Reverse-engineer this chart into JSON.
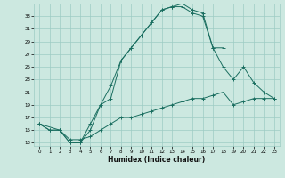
{
  "xlabel": "Humidex (Indice chaleur)",
  "background_color": "#cce8e0",
  "line_color": "#1a6e60",
  "grid_color": "#9eccc4",
  "ylim": [
    12.5,
    35
  ],
  "xlim": [
    -0.5,
    23.5
  ],
  "yticks": [
    13,
    15,
    17,
    19,
    21,
    23,
    25,
    27,
    29,
    31,
    33
  ],
  "xticks": [
    0,
    1,
    2,
    3,
    4,
    5,
    6,
    7,
    8,
    9,
    10,
    11,
    12,
    13,
    14,
    15,
    16,
    17,
    18,
    19,
    20,
    21,
    22,
    23
  ],
  "series": [
    {
      "x": [
        0,
        1,
        2,
        3,
        4,
        5,
        6,
        7,
        8,
        9,
        10,
        11,
        12,
        13,
        14,
        15,
        16,
        17,
        18
      ],
      "y": [
        16,
        15,
        15,
        13,
        13,
        15,
        19,
        20,
        26,
        28,
        30,
        32,
        34,
        34.5,
        34.5,
        33.5,
        33,
        28,
        28
      ]
    },
    {
      "x": [
        0,
        1,
        2,
        3,
        4,
        5,
        6,
        7,
        8,
        9,
        10,
        11,
        12,
        13,
        14,
        15,
        16,
        17,
        18,
        19,
        20,
        21,
        22,
        23
      ],
      "y": [
        16,
        15,
        15,
        13.5,
        13.5,
        14,
        15,
        16,
        17,
        17,
        17.5,
        18,
        18.5,
        19,
        19.5,
        20,
        20,
        20.5,
        21,
        19,
        19.5,
        20,
        20,
        20
      ]
    },
    {
      "x": [
        0,
        2,
        3,
        4,
        5,
        6,
        7,
        8,
        9,
        10,
        11,
        12,
        13,
        14,
        15,
        16,
        17,
        18,
        19,
        20,
        21,
        22,
        23
      ],
      "y": [
        16,
        15,
        13,
        13,
        16,
        19,
        22,
        26,
        28,
        30,
        32,
        34,
        34.5,
        35,
        34,
        33.5,
        28,
        25,
        23,
        25,
        22.5,
        21,
        20
      ]
    }
  ]
}
